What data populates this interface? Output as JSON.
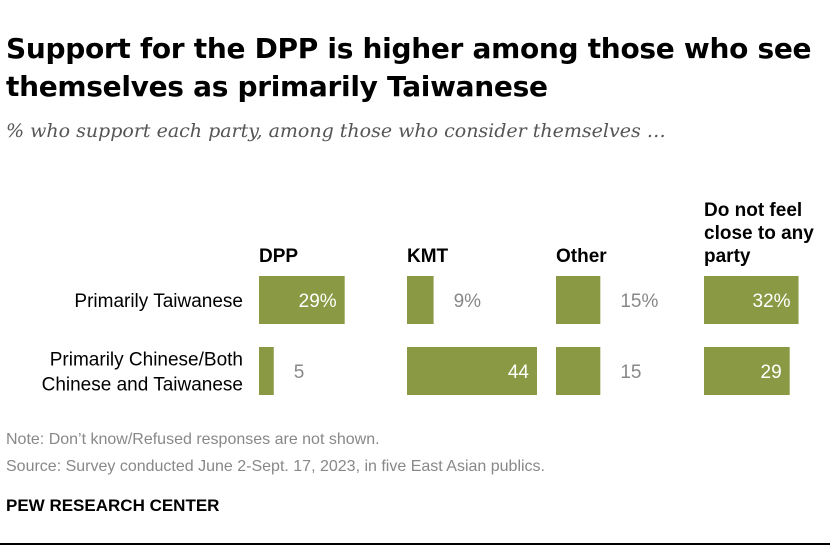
{
  "header": {
    "title": "Support for the DPP is higher among those who see themselves as primarily Taiwanese",
    "subtitle": "% who support each party, among those who consider themselves …"
  },
  "chart_data": {
    "type": "bar",
    "title": "Support for the DPP is higher among those who see themselves as primarily Taiwanese",
    "subtitle": "% who support each party, among those who consider themselves …",
    "categories": [
      "Primarily Taiwanese",
      "Primarily Chinese/Both Chinese and Taiwanese"
    ],
    "series": [
      {
        "name": "DPP",
        "values": [
          29,
          5
        ],
        "labels": [
          "29%",
          "5"
        ]
      },
      {
        "name": "KMT",
        "values": [
          9,
          44
        ],
        "labels": [
          "9%",
          "44"
        ]
      },
      {
        "name": "Other",
        "values": [
          15,
          15
        ],
        "labels": [
          "15%",
          "15"
        ]
      },
      {
        "name": "Do not feel close to any party",
        "values": [
          32,
          29
        ],
        "labels": [
          "32%",
          "29"
        ]
      }
    ],
    "unit": "%",
    "bar_color": "#8a9a44",
    "xlim": [
      0,
      50
    ]
  },
  "footer": {
    "note": "Note: Don’t know/Refused responses are not shown.",
    "source": "Source: Survey conducted June 2-Sept. 17, 2023, in five East Asian publics.",
    "brand": "PEW RESEARCH CENTER"
  }
}
